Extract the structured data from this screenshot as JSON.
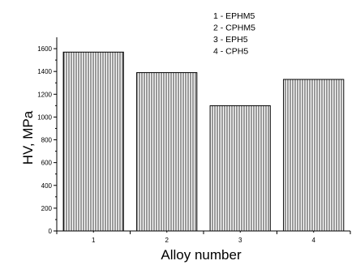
{
  "chart_data": {
    "type": "bar",
    "categories": [
      "1",
      "2",
      "3",
      "4"
    ],
    "values": [
      1570,
      1390,
      1100,
      1330
    ],
    "xlabel": "Alloy number",
    "ylabel": "HV, MPa",
    "ylim": [
      0,
      1700
    ],
    "yticks": [
      0,
      200,
      400,
      600,
      800,
      1000,
      1200,
      1400,
      1600
    ],
    "grid": false,
    "bar_fill": "vertical-hatch",
    "legend_position": "top-right",
    "legend": [
      "1 - EPHM5",
      "2 - CPHM5",
      "3 - EPH5",
      "4 - CPH5"
    ]
  }
}
